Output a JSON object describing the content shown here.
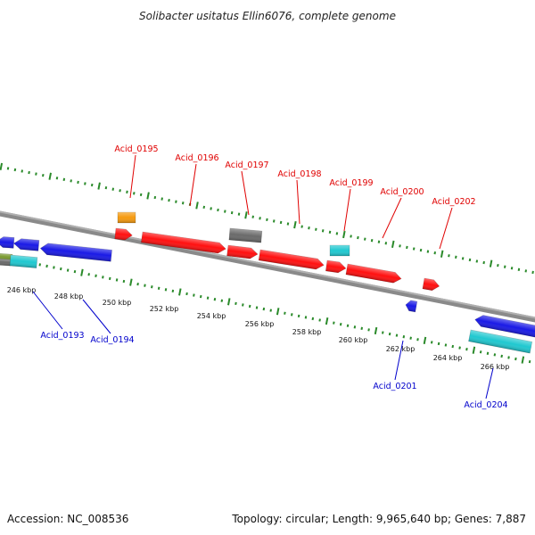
{
  "title": "Solibacter usitatus Ellin6076, complete genome",
  "footer": {
    "accession": "Accession: NC_008536",
    "topology": "Topology: circular; Length: 9,965,640 bp; Genes: 7,887"
  },
  "colors": {
    "background": "#ffffff",
    "backbone": "#8a8a8a",
    "tick_marks": "#2a8a2a",
    "forward_label": "#e00000",
    "reverse_label": "#0000cc",
    "gene_red": "#ff1010",
    "gene_blue": "#1a1ae6",
    "gene_cyan": "#20c8d0",
    "gene_orange": "#f59a10",
    "gene_gray": "#6a6a6a",
    "gene_olive": "#7a9a30"
  },
  "scale_labels": [
    "246 kbp",
    "248 kbp",
    "250 kbp",
    "252 kbp",
    "254 kbp",
    "256 kbp",
    "258 kbp",
    "260 kbp",
    "262 kbp",
    "264 kbp",
    "266 kbp"
  ],
  "forward_gene_labels": [
    "Acid_0195",
    "Acid_0196",
    "Acid_0197",
    "Acid_0198",
    "Acid_0199",
    "Acid_0200",
    "Acid_0202"
  ],
  "reverse_gene_labels": [
    "Acid_0193",
    "Acid_0194",
    "Acid_0201",
    "Acid_0204"
  ]
}
